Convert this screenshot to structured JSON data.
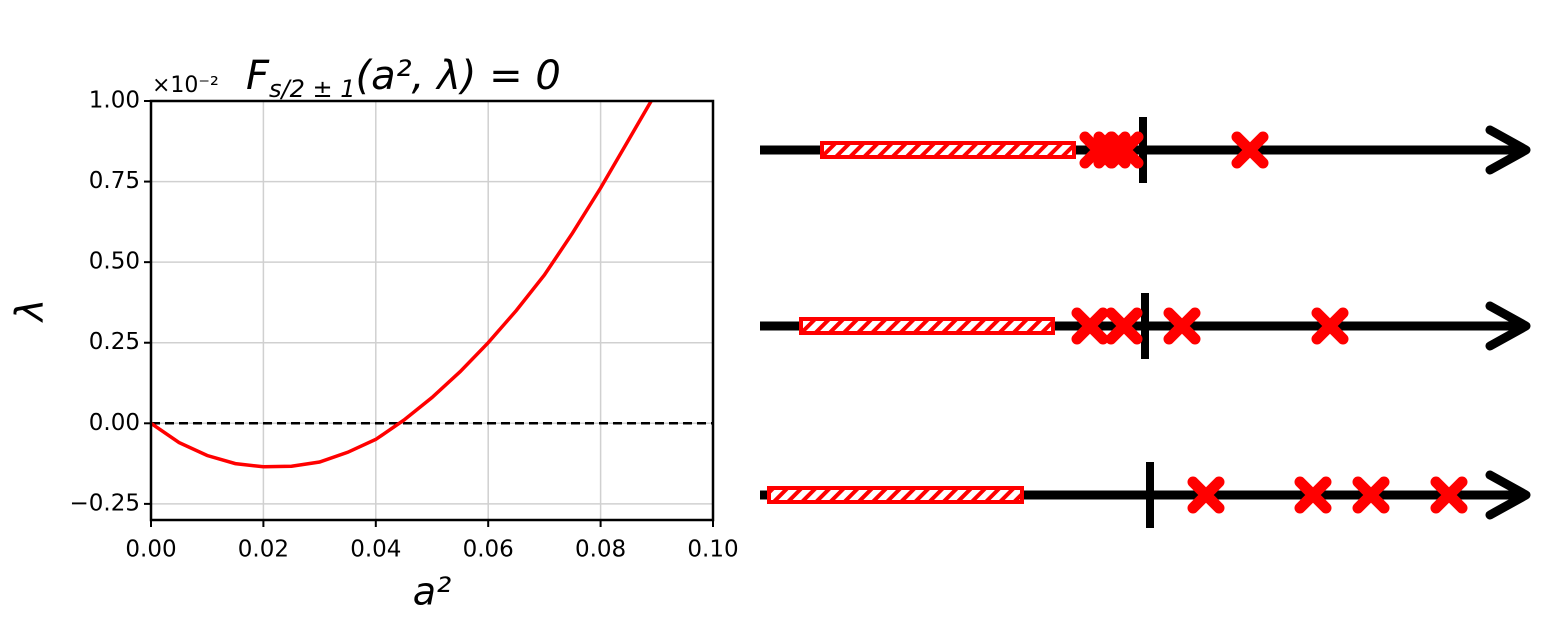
{
  "chart_data": {
    "type": "line",
    "title_parts": [
      "F",
      "s/2 ± 1",
      "(a², λ) = 0"
    ],
    "offset_text": "×10⁻²",
    "xlabel": "a²",
    "ylabel": "λ",
    "x": [
      0,
      0.005,
      0.01,
      0.015,
      0.02,
      0.025,
      0.03,
      0.035,
      0.04,
      0.045,
      0.05,
      0.055,
      0.06,
      0.065,
      0.07,
      0.075,
      0.08,
      0.085,
      0.089
    ],
    "values": [
      0,
      -0.06,
      -0.1,
      -0.125,
      -0.135,
      -0.133,
      -0.12,
      -0.09,
      -0.05,
      0.01,
      0.08,
      0.16,
      0.25,
      0.35,
      0.46,
      0.59,
      0.73,
      0.88,
      1.0
    ],
    "color": "#ff0000",
    "hline": 0,
    "xlim": [
      0,
      0.1
    ],
    "ylim": [
      -0.3,
      1.0
    ],
    "xticks": [
      {
        "value": 0,
        "label": "0.00"
      },
      {
        "value": 0.02,
        "label": "0.02"
      },
      {
        "value": 0.04,
        "label": "0.04"
      },
      {
        "value": 0.06,
        "label": "0.06"
      },
      {
        "value": 0.08,
        "label": "0.08"
      },
      {
        "value": 0.1,
        "label": "0.10"
      }
    ],
    "yticks": [
      {
        "value": -0.25,
        "label": "−0.25"
      },
      {
        "value": 0,
        "label": "0.00"
      },
      {
        "value": 0.25,
        "label": "0.25"
      },
      {
        "value": 0.5,
        "label": "0.50"
      },
      {
        "value": 0.75,
        "label": "0.75"
      },
      {
        "value": 1.0,
        "label": "1.00"
      }
    ],
    "grid": true
  }
}
